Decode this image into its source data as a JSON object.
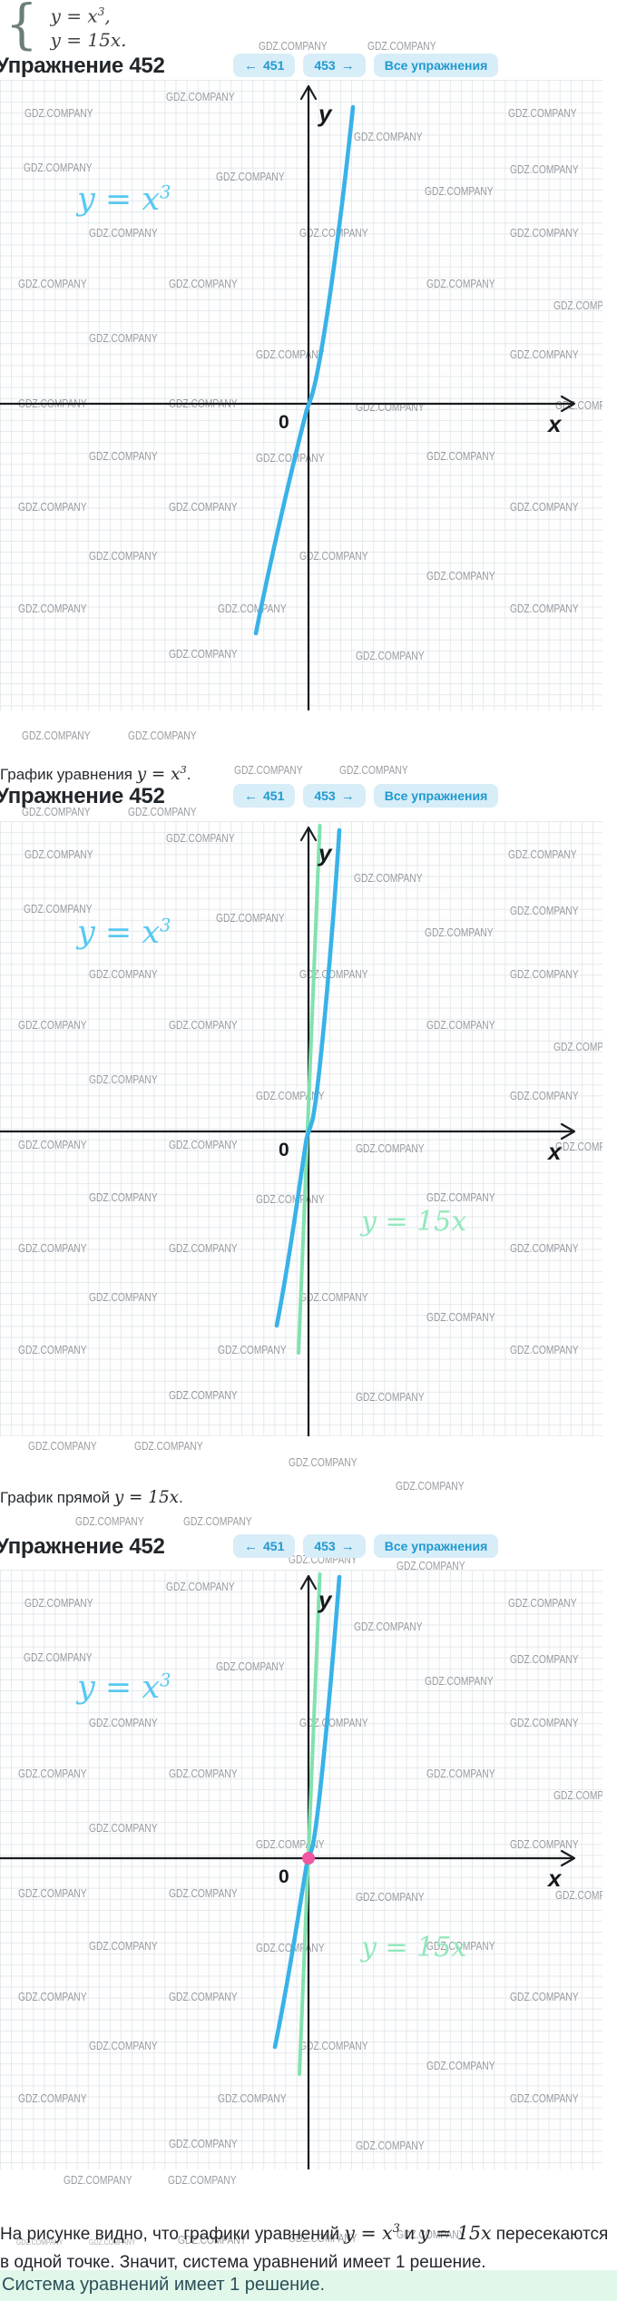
{
  "watermark": "GDZ.COMPANY",
  "colors": {
    "blue": "#39b2e8",
    "green": "#81e2ad",
    "cyan_label": "#58c8f0",
    "mint_label": "#92e8bc",
    "pink": "#ef57a0",
    "pill_bg": "#d7edf8",
    "pill_text": "#2199cf",
    "grid": "#e4e9ed",
    "answer_bg": "#e1f7ea",
    "answer_text": "#2c505a"
  },
  "system": {
    "eq1": {
      "base": "y = x",
      "sup": "3",
      "tail": ","
    },
    "eq2": {
      "base": "y = 15x",
      "tail": "."
    }
  },
  "header": {
    "title": "Упражнение 452",
    "prev": {
      "arrow": "←",
      "label": "451"
    },
    "next": {
      "label": "453",
      "arrow": "→"
    },
    "all_label": "Все упражнения"
  },
  "graphs": {
    "axis": {
      "x": "x",
      "y": "y",
      "origin": "0"
    },
    "cubic_label": {
      "base": "y = x",
      "sup": "3"
    },
    "line_label": "y = 15x"
  },
  "captions": {
    "c1": {
      "prefix": "График уравнения ",
      "math": "y = x",
      "sup": "3",
      "tail": "."
    },
    "c2": {
      "prefix": "График прямой ",
      "math": "y = 15x",
      "tail": "."
    }
  },
  "conclusion": {
    "p1": "На рисунке видно, что графики уравнений ",
    "m1": "y = x",
    "m1sup": "3",
    "p2": " и ",
    "m2": "y = 15x",
    "p3": " пересекаются в одной точке. Значит, система уравнений имеет 1 решение."
  },
  "answer": "Система уравнений имеет 1 решение.",
  "chart_data": [
    {
      "type": "line",
      "title": "y = x^3",
      "series": [
        {
          "name": "y = x^3"
        }
      ],
      "annotations": [
        "y",
        "x",
        "0"
      ]
    },
    {
      "type": "line",
      "title": "y = x^3 and y = 15x",
      "series": [
        {
          "name": "y = x^3"
        },
        {
          "name": "y = 15x"
        }
      ],
      "annotations": [
        "y",
        "x",
        "0"
      ]
    },
    {
      "type": "line",
      "title": "y = x^3 and y = 15x with intersection at origin",
      "series": [
        {
          "name": "y = x^3"
        },
        {
          "name": "y = 15x"
        }
      ],
      "annotations": [
        "y",
        "x",
        "0"
      ]
    }
  ]
}
